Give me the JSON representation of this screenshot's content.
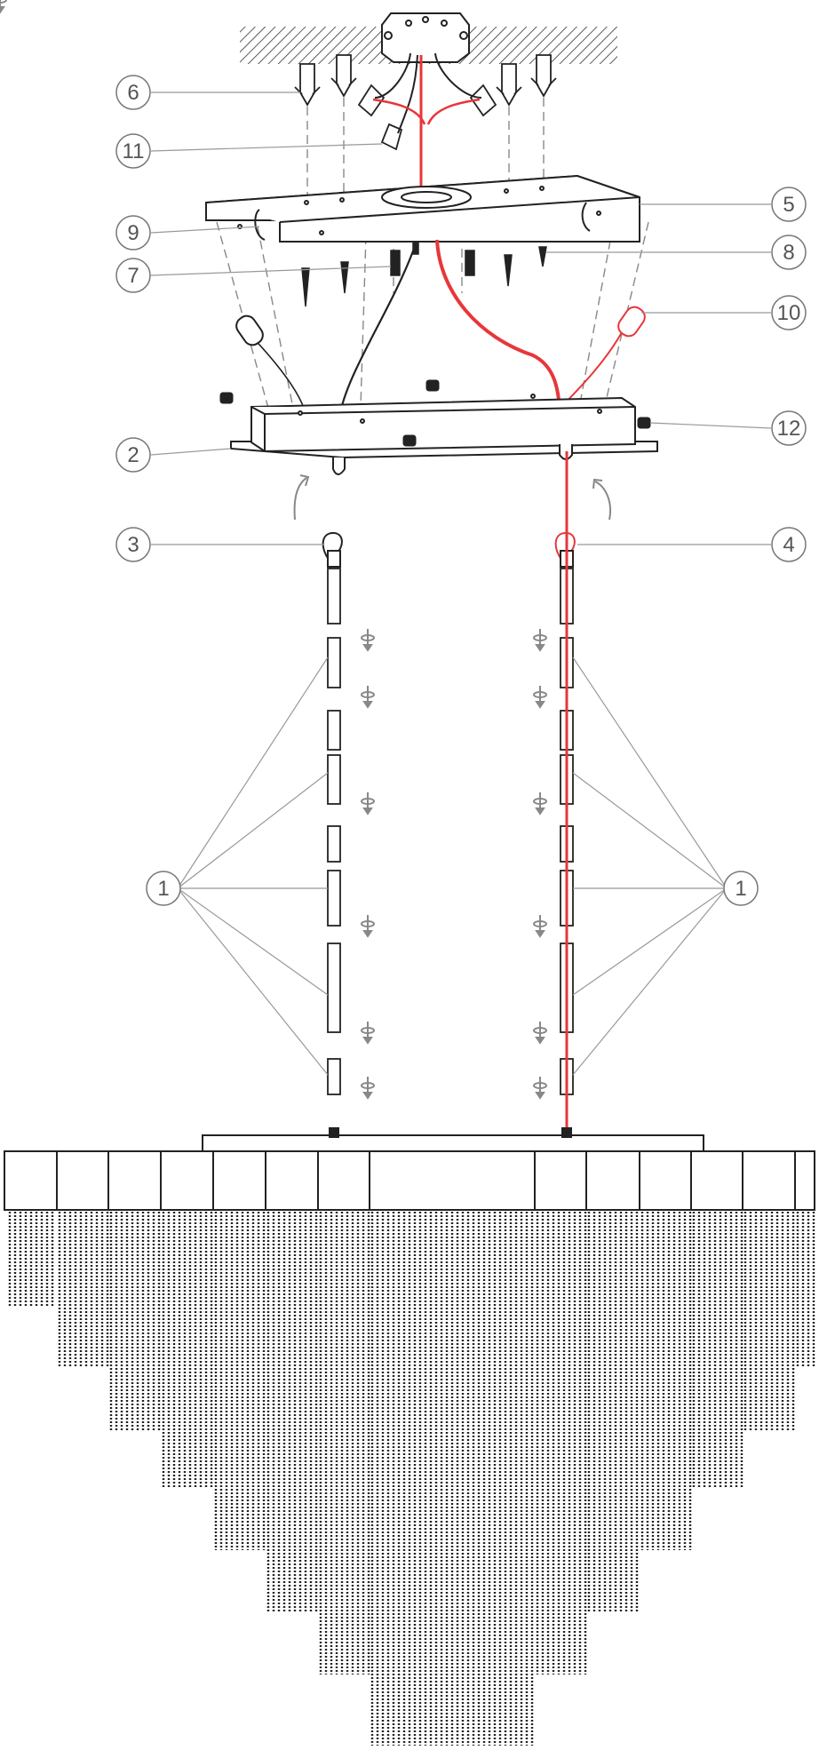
{
  "title": "",
  "colors": {
    "line": "#222222",
    "gray": "#8a8a8a",
    "red": "#e8363a",
    "hatch": "#333333",
    "background": "#ffffff"
  },
  "callouts": [
    {
      "id": "c6",
      "label": "6",
      "part": "wall-anchor"
    },
    {
      "id": "c11",
      "label": "11",
      "part": "wire-connector"
    },
    {
      "id": "c9",
      "label": "9",
      "part": "bracket-hook"
    },
    {
      "id": "c7",
      "label": "7",
      "part": "mounting-screw"
    },
    {
      "id": "c2",
      "label": "2",
      "part": "canopy"
    },
    {
      "id": "c3",
      "label": "3",
      "part": "rod-hook"
    },
    {
      "id": "c1l",
      "label": "1",
      "part": "rod-segment"
    },
    {
      "id": "c5",
      "label": "5",
      "part": "mounting-bracket"
    },
    {
      "id": "c8",
      "label": "8",
      "part": "wood-screw"
    },
    {
      "id": "c10",
      "label": "10",
      "part": "carabiner"
    },
    {
      "id": "c12",
      "label": "12",
      "part": "canopy-screw"
    },
    {
      "id": "c4",
      "label": "4",
      "part": "rod-hook"
    },
    {
      "id": "c1r",
      "label": "1",
      "part": "rod-segment"
    }
  ]
}
